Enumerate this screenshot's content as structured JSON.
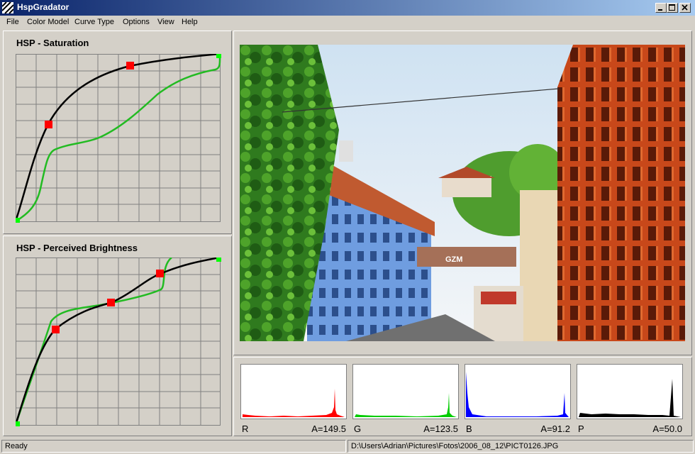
{
  "app": {
    "title": "HspGradator",
    "status": "Ready",
    "file_path": "D:\\Users\\Adrian\\Pictures\\Fotos\\2006_08_12\\PICT0126.JPG"
  },
  "menu": {
    "items": [
      "File",
      "Color Model",
      "Curve Type",
      "Options",
      "View",
      "Help"
    ]
  },
  "curves": {
    "saturation": {
      "title": "HSP - Saturation"
    },
    "brightness": {
      "title": "HSP - Perceived Brightness"
    }
  },
  "histograms": [
    {
      "channel": "R",
      "average": "A=149.5",
      "color": "#ff0000"
    },
    {
      "channel": "G",
      "average": "A=123.5",
      "color": "#00cc00"
    },
    {
      "channel": "B",
      "average": "A=91.2",
      "color": "#0000ff"
    },
    {
      "channel": "P",
      "average": "A=50.0",
      "color": "#000000"
    }
  ],
  "colors": {
    "titlebar_start": "#0a246a",
    "titlebar_end": "#a6caf0",
    "control_point": "#ff0000",
    "endpoint": "#00ff00",
    "curve": "#000000",
    "response_curve": "#22bb22",
    "grid": "#808080",
    "panel_bg": "#d4d0c8"
  },
  "icons": [
    "app-icon",
    "minimize-icon",
    "maximize-icon",
    "close-icon"
  ]
}
